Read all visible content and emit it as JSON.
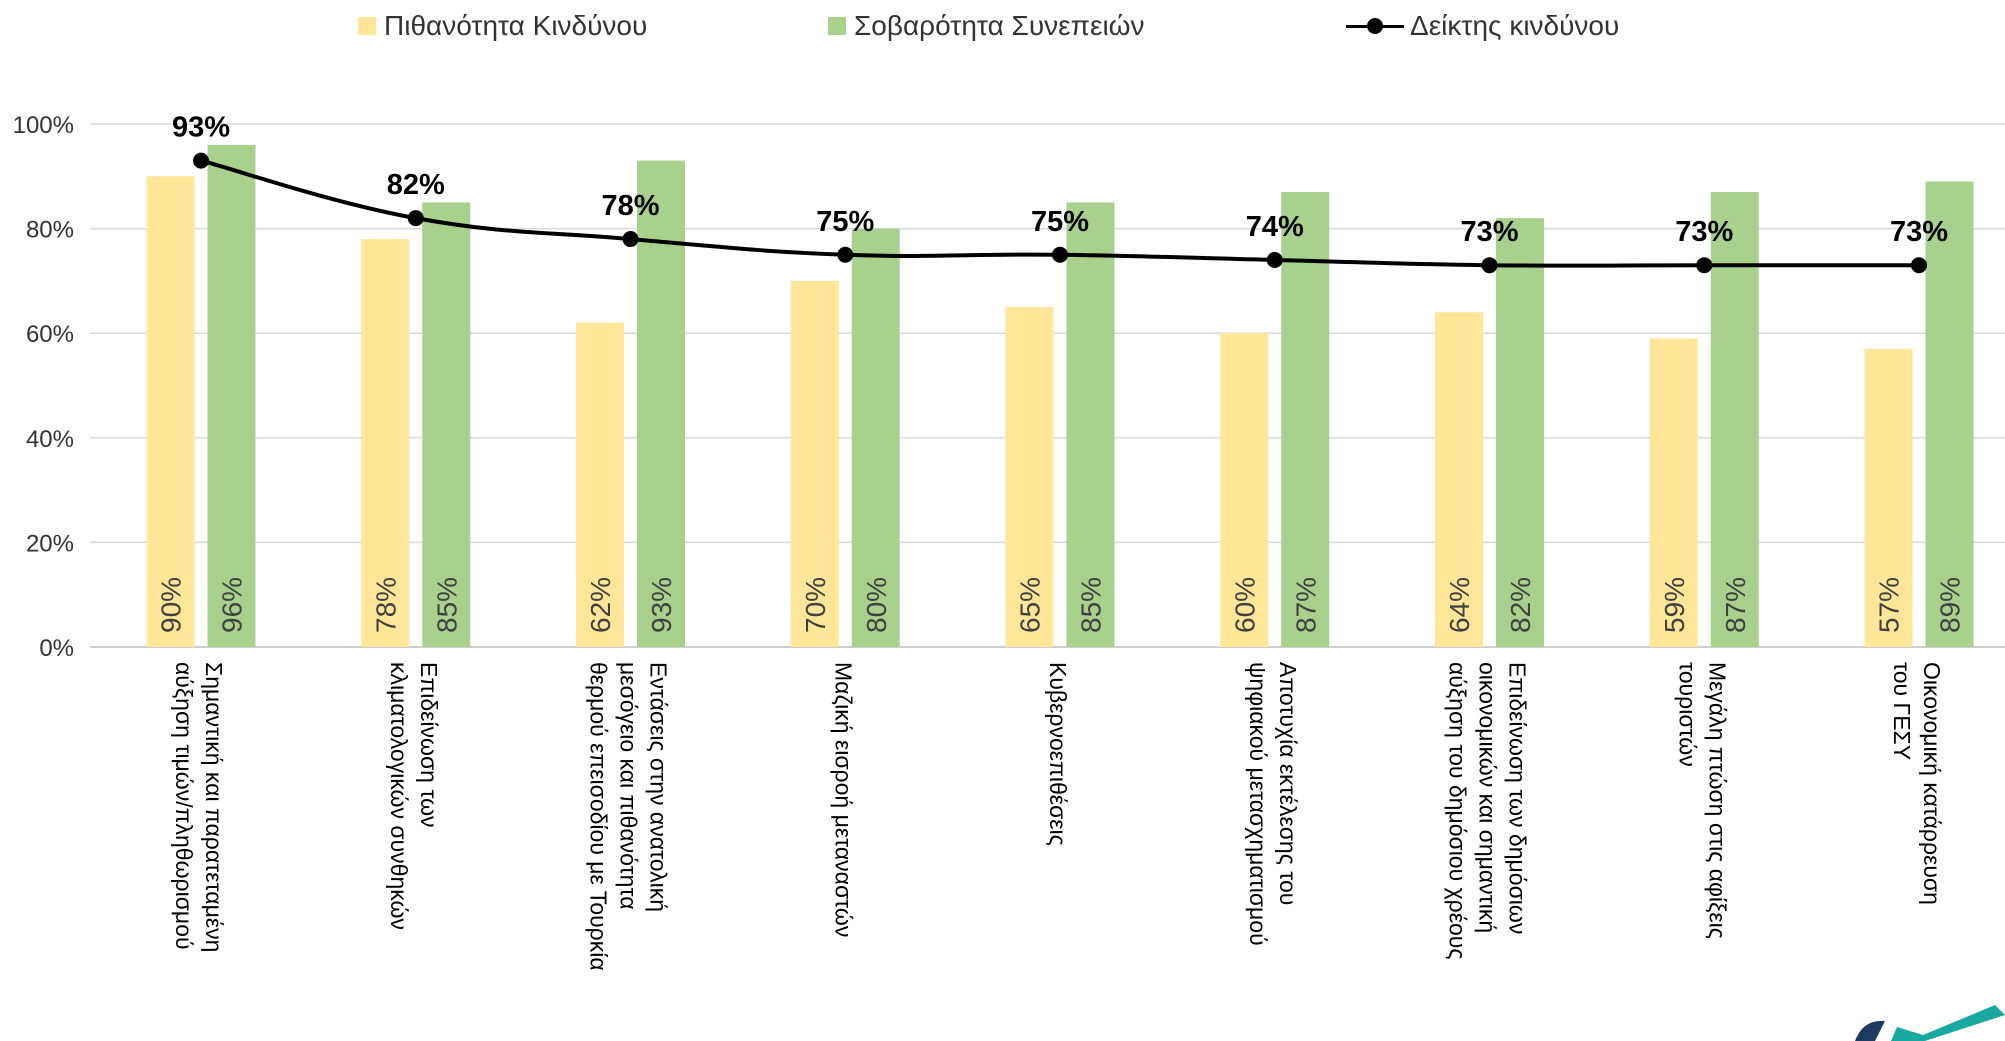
{
  "legend": {
    "probability": "Πιθανότητα Κινδύνου",
    "severity": "Σοβαρότητα Συνεπειών",
    "index": "Δείκτης κινδύνου"
  },
  "colors": {
    "probability": "#FFE699",
    "severity": "#A9D18E",
    "index": "#000000",
    "grid": "#D9D9D9",
    "axis_text": "#333333"
  },
  "chart_data": {
    "type": "bar",
    "categories": [
      [
        "Σημαντική και παρατεταμένη",
        "αύξηση τιμών/πληθωρισμού"
      ],
      [
        "Επιδείνωση των",
        "κλιματολογικών συνθηκών"
      ],
      [
        "Εντάσεις στην ανατολική",
        "μεσόγειο και πιθανότητα",
        "θερμού επεισοδίου με Τουρκία"
      ],
      [
        "Μαζική εισροή μεταναστών"
      ],
      [
        "Κυβερνοεπιθέσεις"
      ],
      [
        "Αποτυχία εκτέλεσης του",
        "ψηφιακού μετασχηματισμού"
      ],
      [
        "Επιδείνωση των δημόσιων",
        "οικονομικών και σημαντική",
        "αύξηση του δημόσιου χρέους"
      ],
      [
        "Μεγάλη πτώση στις αφίξεις",
        "τουριστών"
      ],
      [
        "Οικονομική κατάρρευση",
        "του ΓΕΣΥ"
      ]
    ],
    "series": [
      {
        "name": "Πιθανότητα Κινδύνου",
        "type": "bar",
        "values": [
          90,
          78,
          62,
          70,
          65,
          60,
          64,
          59,
          57
        ]
      },
      {
        "name": "Σοβαρότητα Συνεπειών",
        "type": "bar",
        "values": [
          96,
          85,
          93,
          80,
          85,
          87,
          82,
          87,
          89
        ]
      },
      {
        "name": "Δείκτης κινδύνου",
        "type": "line",
        "values": [
          93,
          82,
          78,
          75,
          75,
          74,
          73,
          73,
          73
        ]
      }
    ],
    "yticks": [
      "0%",
      "20%",
      "40%",
      "60%",
      "80%",
      "100%"
    ],
    "ylim": [
      0,
      100
    ],
    "grid": true,
    "legend_position": "top",
    "value_suffix": "%"
  }
}
